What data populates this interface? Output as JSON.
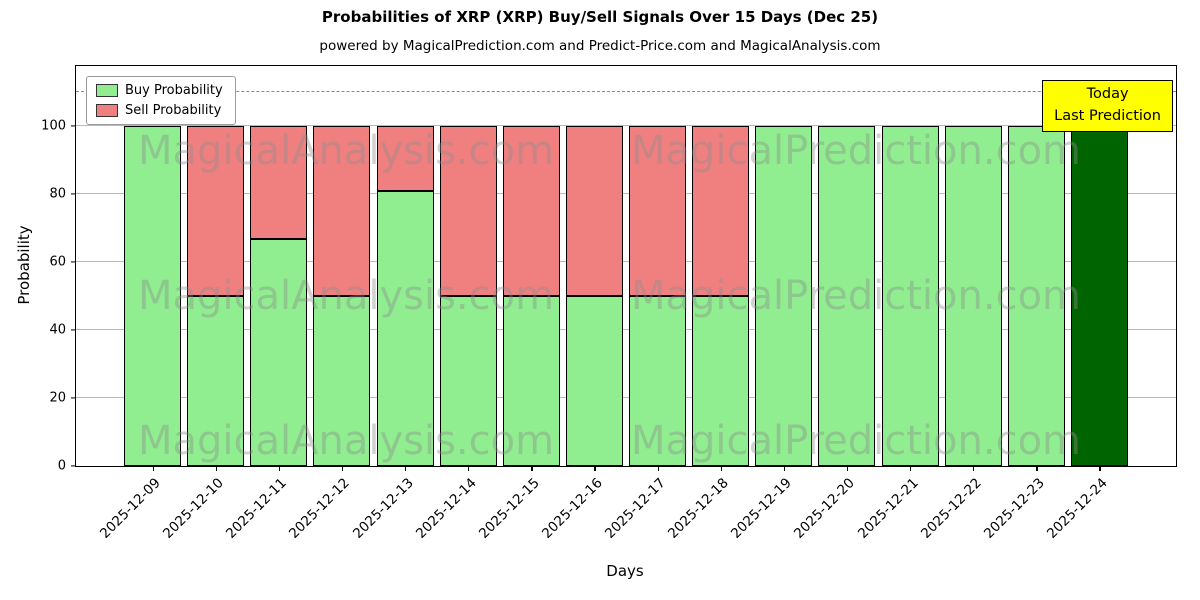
{
  "title": "Probabilities of XRP (XRP) Buy/Sell Signals Over 15 Days (Dec 25)",
  "subtitle": "powered by MagicalPrediction.com and Predict-Price.com and MagicalAnalysis.com",
  "legend": {
    "buy": "Buy Probability",
    "sell": "Sell Probability"
  },
  "annotation": {
    "line1": "Today",
    "line2": "Last Prediction"
  },
  "watermarks": [
    "MagicalAnalysis.com",
    "MagicalPrediction.com"
  ],
  "colors": {
    "buy": "#90EE90",
    "sell": "#F08080",
    "today_bar": "#006400",
    "annotation_bg": "#FFFF00",
    "edge": "#000000",
    "grid": "#B9B9B9"
  },
  "chart_data": {
    "type": "bar",
    "stacked": true,
    "title": "Probabilities of XRP (XRP) Buy/Sell Signals Over 15 Days (Dec 25)",
    "xlabel": "Days",
    "ylabel": "Probability",
    "categories": [
      "2025-12-09",
      "2025-12-10",
      "2025-12-11",
      "2025-12-12",
      "2025-12-13",
      "2025-12-14",
      "2025-12-15",
      "2025-12-16",
      "2025-12-17",
      "2025-12-18",
      "2025-12-19",
      "2025-12-20",
      "2025-12-21",
      "2025-12-22",
      "2025-12-23",
      "2025-12-24"
    ],
    "series": [
      {
        "name": "Buy Probability",
        "color": "#90EE90",
        "values": [
          100,
          50,
          66.7,
          50,
          81,
          50,
          50,
          50,
          50,
          50,
          100,
          100,
          100,
          100,
          100,
          100
        ]
      },
      {
        "name": "Sell Probability",
        "color": "#F08080",
        "values": [
          0,
          50,
          33.3,
          50,
          19,
          50,
          50,
          50,
          50,
          50,
          0,
          0,
          0,
          0,
          0,
          0
        ]
      }
    ],
    "today_bar": {
      "category": "2025-12-24",
      "color": "#006400"
    },
    "yticks": [
      0,
      20,
      40,
      60,
      80,
      100
    ],
    "ylim": [
      0,
      117.6
    ],
    "dashed_line_y": 110,
    "grid": true,
    "legend_position": "upper-left"
  }
}
